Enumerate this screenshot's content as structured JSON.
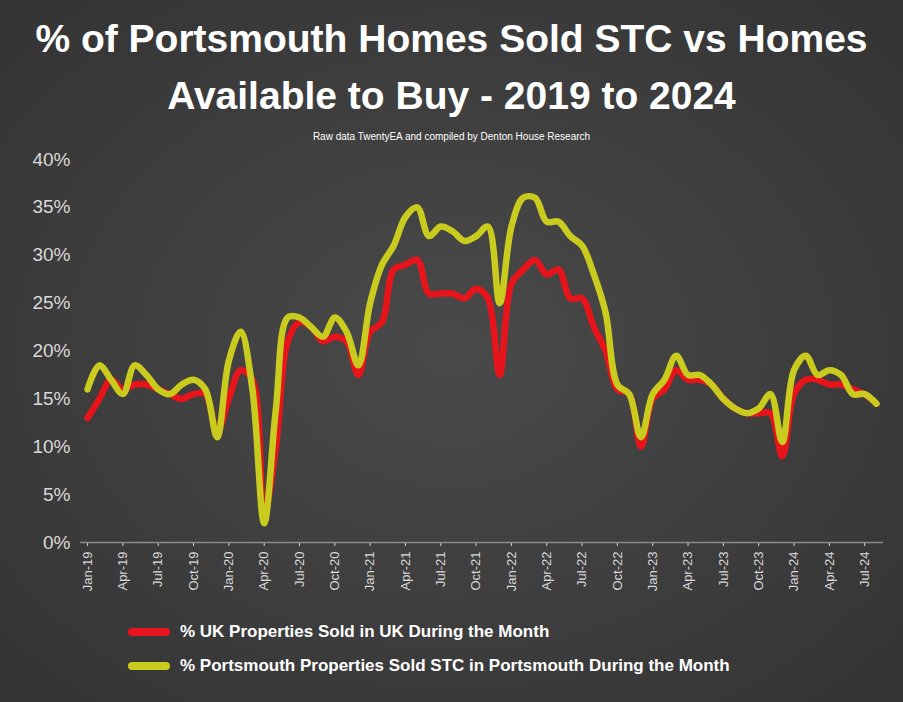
{
  "chart_data": {
    "type": "line",
    "title": "% of Portsmouth Homes Sold STC vs Homes Available to Buy - 2019 to 2024",
    "subtitle": "Raw data TwentyEA and compiled by Denton House Research",
    "categories": [
      "Jan-19",
      null,
      null,
      "Apr-19",
      null,
      null,
      "Jul-19",
      null,
      null,
      "Oct-19",
      null,
      null,
      "Jan-20",
      null,
      null,
      "Apr-20",
      null,
      null,
      "Jul-20",
      null,
      null,
      "Oct-20",
      null,
      null,
      "Jan-21",
      null,
      null,
      "Apr-21",
      null,
      null,
      "Jul-21",
      null,
      null,
      "Oct-21",
      null,
      null,
      "Jan-22",
      null,
      null,
      "Apr-22",
      null,
      null,
      "Jul-22",
      null,
      null,
      "Oct-22",
      null,
      null,
      "Jan-23",
      null,
      null,
      "Apr-23",
      null,
      null,
      "Jul-23",
      null,
      null,
      "Oct-23",
      null,
      null,
      "Jan-24",
      null,
      null,
      "Apr-24",
      null,
      null,
      "Jul-24",
      null
    ],
    "series": [
      {
        "name": "% UK Properties Sold in UK During the Month",
        "color": "#e8141b",
        "values": [
          13,
          15,
          17,
          16,
          16.5,
          16.5,
          16,
          15.5,
          15,
          15.5,
          15.5,
          11.5,
          15,
          18,
          17,
          3,
          10,
          21,
          23,
          22.5,
          21,
          21.5,
          21,
          17.5,
          22,
          23,
          28.5,
          29,
          29.5,
          26,
          26,
          26,
          25.5,
          26.5,
          25.5,
          17.5,
          27,
          28.5,
          29.5,
          28,
          28.5,
          25.5,
          25.5,
          22.5,
          20,
          16,
          15.5,
          10,
          15,
          16,
          18,
          17,
          17,
          16.5,
          15,
          14,
          13.5,
          13.5,
          13.5,
          9,
          15.5,
          17,
          17,
          16.5,
          16.5,
          16,
          15.5,
          14.5
        ]
      },
      {
        "name": "% Portsmouth Properties Sold STC in Portsmouth During the Month",
        "color": "#c9cc1f",
        "values": [
          16,
          18.5,
          17,
          15.5,
          18.5,
          17.5,
          16,
          15.5,
          16.5,
          17,
          16,
          11,
          19,
          22,
          16,
          2,
          14,
          23.5,
          23.5,
          22.5,
          21.5,
          23.5,
          22,
          18.5,
          25,
          29,
          31,
          34,
          35,
          32,
          33,
          32.5,
          31.5,
          32,
          33,
          25,
          33,
          36,
          36,
          33.5,
          33.5,
          32,
          31,
          28,
          24,
          16.5,
          15.5,
          11,
          15.5,
          17,
          19.5,
          17.5,
          17.5,
          16.5,
          15,
          14,
          13.5,
          14,
          15.5,
          10.5,
          18,
          19.5,
          17.5,
          18,
          17.5,
          15.5,
          15.5,
          14.5
        ]
      }
    ],
    "ylim": [
      0,
      40
    ],
    "yticks": [
      {
        "value": 0,
        "label": "0%"
      },
      {
        "value": 5,
        "label": "5%"
      },
      {
        "value": 10,
        "label": "10%"
      },
      {
        "value": 15,
        "label": "15%"
      },
      {
        "value": 20,
        "label": "20%"
      },
      {
        "value": 25,
        "label": "25%"
      },
      {
        "value": 30,
        "label": "30%"
      },
      {
        "value": 35,
        "label": "35%"
      },
      {
        "value": 40,
        "label": "40%"
      }
    ],
    "grid": false,
    "legend": "bottom"
  }
}
